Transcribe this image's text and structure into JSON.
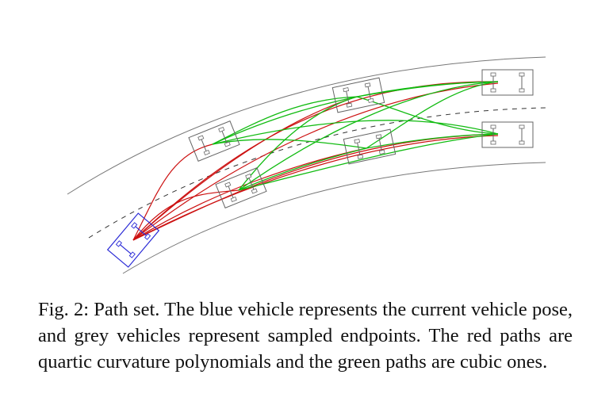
{
  "figure": {
    "caption": "Fig. 2: Path set. The blue vehicle represents the current vehicle pose, and grey vehicles represent sampled endpoints. The red paths are quartic curvature polynomials and the green paths are cubic ones."
  },
  "colors": {
    "road_edge": "#777777",
    "centerline": "#333333",
    "ego_vehicle": "#2a2ad6",
    "sampled_vehicle": "#666666",
    "quartic_path": "#cc1111",
    "cubic_path": "#11bb11"
  }
}
